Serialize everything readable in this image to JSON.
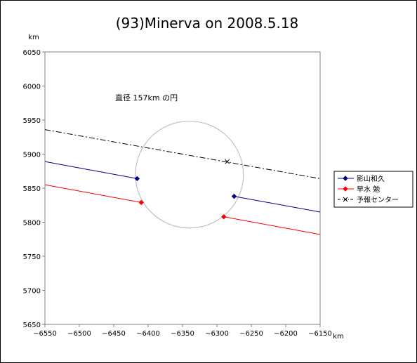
{
  "chart_data": {
    "type": "scatter",
    "title": "(93)Minerva on 2008.5.18",
    "x_unit": "km",
    "y_unit": "km",
    "xlim": [
      -6550,
      -6150
    ],
    "ylim": [
      5650,
      6050
    ],
    "xticks": [
      -6550,
      -6500,
      -6450,
      -6400,
      -6350,
      -6300,
      -6250,
      -6200,
      -6150
    ],
    "yticks": [
      5650,
      5700,
      5750,
      5800,
      5850,
      5900,
      5950,
      6000,
      6050
    ],
    "grid": false,
    "legend_position": "right",
    "annotation": "直径 157km の円",
    "circle": {
      "center_x": -6340,
      "center_y": 5870,
      "radius": 78.5,
      "color": "#c0c0c0"
    },
    "series": [
      {
        "name": "影山和久",
        "color": "#000080",
        "marker": "diamond",
        "style": "solid",
        "segments": [
          {
            "x": [
              -6550,
              -6416
            ],
            "y": [
              5889,
              5864
            ]
          },
          {
            "x": [
              -6275,
              -6150
            ],
            "y": [
              5838,
              5815
            ]
          }
        ],
        "points": [
          {
            "x": -6416,
            "y": 5864
          },
          {
            "x": -6275,
            "y": 5838
          }
        ]
      },
      {
        "name": "早水 勉",
        "color": "#ff0000",
        "marker": "diamond",
        "style": "solid",
        "segments": [
          {
            "x": [
              -6550,
              -6410
            ],
            "y": [
              5855,
              5829
            ]
          },
          {
            "x": [
              -6290,
              -6150
            ],
            "y": [
              5808,
              5782
            ]
          }
        ],
        "points": [
          {
            "x": -6410,
            "y": 5829
          },
          {
            "x": -6290,
            "y": 5808
          }
        ]
      },
      {
        "name": "予報センター",
        "color": "#000000",
        "marker": "x",
        "style": "dashdot",
        "segments": [
          {
            "x": [
              -6550,
              -6150
            ],
            "y": [
              5936,
              5864
            ]
          }
        ],
        "points": [
          {
            "x": -6285,
            "y": 5889
          }
        ]
      }
    ]
  }
}
